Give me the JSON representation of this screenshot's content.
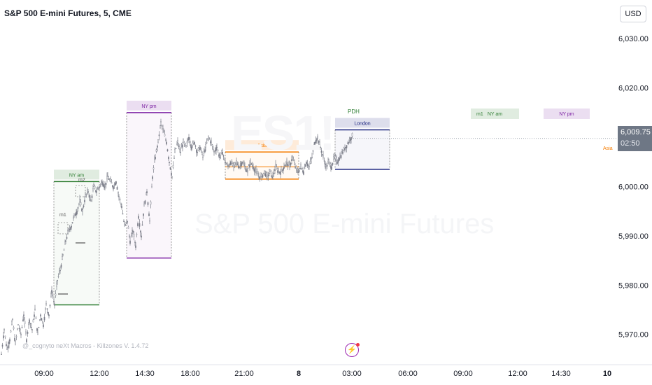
{
  "header": {
    "title": "S&P 500 E-mini Futures, 5, CME",
    "currency": "USD"
  },
  "price_tag": {
    "value": "6,009.75",
    "countdown": "02:50"
  },
  "footnote": "@_cognyto neXt Macros - Killzones V. 1.4.72",
  "watermark": "S&P 500 E-mini Futures",
  "colors": {
    "up": "#787b86",
    "ny_am": "#2e7d32",
    "ny_pm": "#7b1fa2",
    "asia": "#f57c00",
    "london": "#1a237e",
    "price_tag": "#6e7785"
  },
  "chart_data": {
    "type": "candlestick",
    "title": "S&P 500 E-mini Futures, 5, CME",
    "ylim": [
      5964,
      6035
    ],
    "y_ticks": [
      5970,
      5980,
      5990,
      6000,
      6010,
      6020,
      6030
    ],
    "y_tick_labels": [
      "5,970.00",
      "5,980.00",
      "5,990.00",
      "6,000.00",
      "6,010.00",
      "6,020.00",
      "6,030.00"
    ],
    "x_tick_labels": [
      "09:00",
      "12:00",
      "14:30",
      "18:00",
      "21:00",
      "8",
      "03:00",
      "06:00",
      "09:00",
      "12:00",
      "14:30",
      "10"
    ],
    "last_price": 6009.75,
    "price_path": [
      [
        0,
        5966
      ],
      [
        4,
        5971
      ],
      [
        8,
        5967
      ],
      [
        12,
        5969
      ],
      [
        16,
        5973
      ],
      [
        20,
        5968
      ],
      [
        24,
        5972
      ],
      [
        28,
        5970
      ],
      [
        32,
        5974
      ],
      [
        36,
        5969
      ],
      [
        40,
        5973
      ],
      [
        44,
        5971
      ],
      [
        48,
        5975
      ],
      [
        52,
        5970
      ],
      [
        56,
        5974
      ],
      [
        60,
        5972
      ],
      [
        64,
        5976
      ],
      [
        68,
        5974
      ],
      [
        72,
        5979
      ],
      [
        76,
        5976
      ],
      [
        80,
        5981
      ],
      [
        84,
        5983
      ],
      [
        88,
        5986
      ],
      [
        92,
        5989
      ],
      [
        96,
        5991
      ],
      [
        100,
        5992
      ],
      [
        104,
        5994
      ],
      [
        108,
        5995
      ],
      [
        112,
        5997
      ],
      [
        116,
        5995
      ],
      [
        120,
        5998
      ],
      [
        124,
        5999
      ],
      [
        128,
        5997
      ],
      [
        132,
        6000
      ],
      [
        136,
        5999
      ],
      [
        140,
        6000
      ],
      [
        144,
        6001
      ],
      [
        148,
        6000
      ],
      [
        152,
        6002
      ],
      [
        156,
        6001
      ],
      [
        160,
        6000
      ],
      [
        164,
        6001
      ],
      [
        168,
        5998
      ],
      [
        172,
        5996
      ],
      [
        176,
        5992
      ],
      [
        180,
        5993
      ],
      [
        184,
        5989
      ],
      [
        188,
        5991
      ],
      [
        192,
        5988
      ],
      [
        196,
        5994
      ],
      [
        200,
        5990
      ],
      [
        204,
        5996
      ],
      [
        208,
        5999
      ],
      [
        212,
        5993
      ],
      [
        216,
        6002
      ],
      [
        220,
        6006
      ],
      [
        224,
        6009
      ],
      [
        228,
        6013
      ],
      [
        232,
        6011
      ],
      [
        236,
        6009
      ],
      [
        240,
        6005
      ],
      [
        244,
        6002
      ],
      [
        248,
        6007
      ],
      [
        252,
        6009
      ],
      [
        256,
        6007
      ],
      [
        260,
        6009
      ],
      [
        264,
        6008
      ],
      [
        268,
        6010
      ],
      [
        272,
        6008
      ],
      [
        276,
        6009
      ],
      [
        280,
        6007
      ],
      [
        284,
        6008
      ],
      [
        288,
        6006
      ],
      [
        292,
        6008
      ],
      [
        296,
        6010
      ],
      [
        300,
        6009
      ],
      [
        304,
        6007
      ],
      [
        308,
        6008
      ],
      [
        312,
        6006
      ],
      [
        316,
        6007
      ],
      [
        320,
        6005
      ],
      [
        324,
        6004
      ],
      [
        328,
        6005
      ],
      [
        332,
        6004
      ],
      [
        336,
        6005
      ],
      [
        340,
        6004
      ],
      [
        344,
        6005
      ],
      [
        348,
        6004
      ],
      [
        352,
        6003
      ],
      [
        356,
        6005
      ],
      [
        360,
        6004
      ],
      [
        364,
        6003
      ],
      [
        368,
        6002
      ],
      [
        372,
        6002
      ],
      [
        376,
        6003
      ],
      [
        380,
        6002
      ],
      [
        384,
        6003
      ],
      [
        388,
        6002
      ],
      [
        392,
        6004
      ],
      [
        396,
        6003
      ],
      [
        400,
        6003
      ],
      [
        404,
        6004
      ],
      [
        408,
        6005
      ],
      [
        412,
        6004
      ],
      [
        416,
        6006
      ],
      [
        420,
        6004
      ],
      [
        424,
        6003
      ],
      [
        428,
        6004
      ],
      [
        432,
        6003
      ],
      [
        436,
        6005
      ],
      [
        440,
        6004
      ],
      [
        444,
        6006
      ],
      [
        448,
        6009
      ],
      [
        452,
        6010
      ],
      [
        456,
        6008
      ],
      [
        460,
        6006
      ],
      [
        464,
        6004
      ],
      [
        468,
        6005
      ],
      [
        472,
        6004
      ],
      [
        476,
        6006
      ],
      [
        480,
        6005
      ],
      [
        484,
        6006
      ],
      [
        488,
        6007
      ],
      [
        492,
        6008
      ],
      [
        496,
        6009
      ],
      [
        500,
        6010
      ],
      [
        503,
        6010.5
      ]
    ],
    "zones": [
      {
        "label": "NY am",
        "color": "#2e7d32",
        "high": 6001,
        "low": 5976,
        "x0": 77,
        "x1": 142
      },
      {
        "label": "NY pm",
        "color": "#7b1fa2",
        "high": 6015,
        "low": 5985.5,
        "x0": 181,
        "x1": 245
      },
      {
        "label": "Asia",
        "color": "#f57c00",
        "high": 6007,
        "low": 6001.5,
        "x0": 322,
        "x1": 427
      },
      {
        "label": "London",
        "color": "#1a237e",
        "high": 6011.5,
        "low": 6003.5,
        "x0": 479,
        "x1": 557
      }
    ],
    "future_zones": [
      {
        "label": "NY am",
        "prefix": "m1",
        "color": "#2e7d32",
        "x0": 673,
        "x1": 742
      },
      {
        "label": "NY pm",
        "color": "#7b1fa2",
        "x0": 777,
        "x1": 843
      }
    ],
    "side_labels": {
      "asia": "Asia",
      "pdh": "PDH",
      "m1": "m1",
      "m2": "m2"
    }
  }
}
